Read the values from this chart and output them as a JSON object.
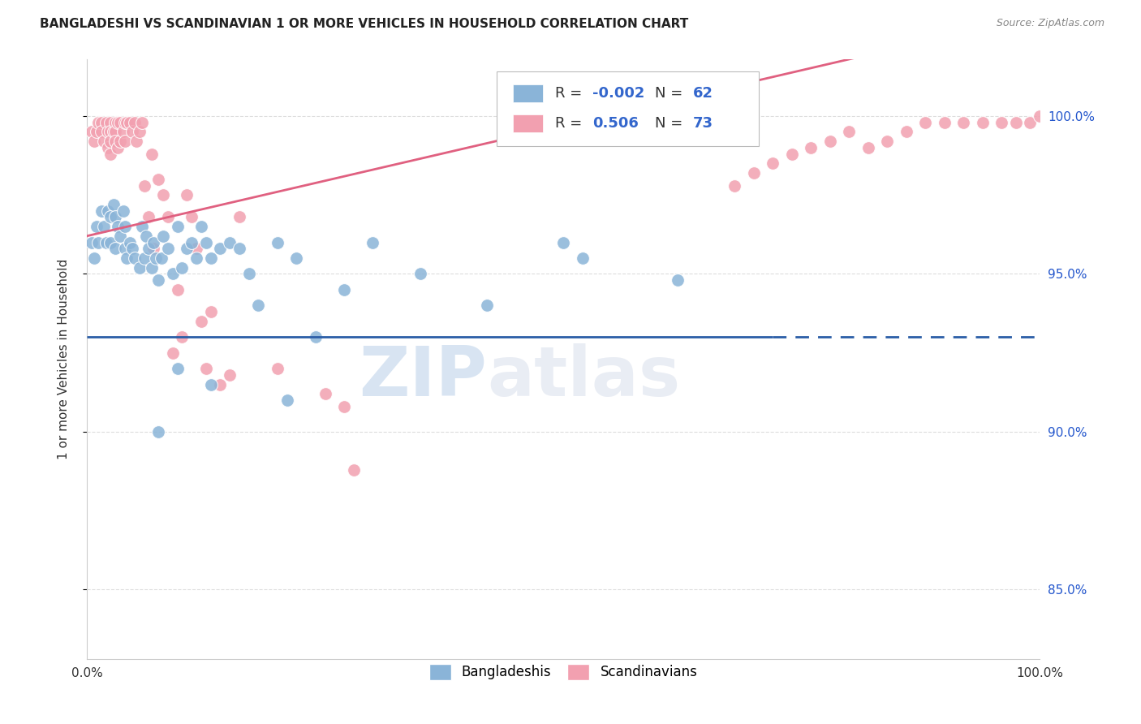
{
  "title": "BANGLADESHI VS SCANDINAVIAN 1 OR MORE VEHICLES IN HOUSEHOLD CORRELATION CHART",
  "source": "Source: ZipAtlas.com",
  "ylabel": "1 or more Vehicles in Household",
  "xlim": [
    0.0,
    1.0
  ],
  "ylim": [
    0.828,
    1.018
  ],
  "yticks": [
    0.85,
    0.9,
    0.95,
    1.0
  ],
  "ytick_labels": [
    "85.0%",
    "90.0%",
    "95.0%",
    "100.0%"
  ],
  "xticks": [
    0.0,
    0.1,
    0.2,
    0.3,
    0.4,
    0.5,
    0.6,
    0.7,
    0.8,
    0.9,
    1.0
  ],
  "xtick_labels": [
    "0.0%",
    "",
    "",
    "",
    "",
    "",
    "",
    "",
    "",
    "",
    "100.0%"
  ],
  "legend_label_blue": "Bangladeshis",
  "legend_label_pink": "Scandinavians",
  "blue_color": "#8ab4d8",
  "pink_color": "#f2a0b0",
  "blue_line_color": "#2b5ea7",
  "pink_line_color": "#e06080",
  "watermark_zip": "ZIP",
  "watermark_atlas": "atlas",
  "blue_line_solid_end": 0.72,
  "blue_line_y": 0.93,
  "blue_scatter_x": [
    0.005,
    0.008,
    0.01,
    0.012,
    0.015,
    0.018,
    0.02,
    0.022,
    0.025,
    0.025,
    0.028,
    0.03,
    0.03,
    0.032,
    0.035,
    0.038,
    0.04,
    0.04,
    0.042,
    0.045,
    0.048,
    0.05,
    0.055,
    0.058,
    0.06,
    0.062,
    0.065,
    0.068,
    0.07,
    0.072,
    0.075,
    0.078,
    0.08,
    0.085,
    0.09,
    0.095,
    0.1,
    0.105,
    0.11,
    0.115,
    0.12,
    0.125,
    0.13,
    0.14,
    0.15,
    0.16,
    0.17,
    0.18,
    0.2,
    0.22,
    0.24,
    0.27,
    0.3,
    0.35,
    0.42,
    0.5,
    0.52,
    0.62,
    0.095,
    0.13,
    0.075,
    0.21
  ],
  "blue_scatter_y": [
    0.96,
    0.955,
    0.965,
    0.96,
    0.97,
    0.965,
    0.96,
    0.97,
    0.968,
    0.96,
    0.972,
    0.968,
    0.958,
    0.965,
    0.962,
    0.97,
    0.965,
    0.958,
    0.955,
    0.96,
    0.958,
    0.955,
    0.952,
    0.965,
    0.955,
    0.962,
    0.958,
    0.952,
    0.96,
    0.955,
    0.948,
    0.955,
    0.962,
    0.958,
    0.95,
    0.965,
    0.952,
    0.958,
    0.96,
    0.955,
    0.965,
    0.96,
    0.955,
    0.958,
    0.96,
    0.958,
    0.95,
    0.94,
    0.96,
    0.955,
    0.93,
    0.945,
    0.96,
    0.95,
    0.94,
    0.96,
    0.955,
    0.948,
    0.92,
    0.915,
    0.9,
    0.91
  ],
  "pink_scatter_x": [
    0.005,
    0.008,
    0.01,
    0.012,
    0.015,
    0.015,
    0.018,
    0.02,
    0.022,
    0.022,
    0.025,
    0.025,
    0.025,
    0.025,
    0.028,
    0.03,
    0.03,
    0.03,
    0.032,
    0.032,
    0.035,
    0.035,
    0.038,
    0.04,
    0.04,
    0.042,
    0.045,
    0.048,
    0.05,
    0.052,
    0.055,
    0.058,
    0.06,
    0.065,
    0.068,
    0.07,
    0.075,
    0.08,
    0.085,
    0.09,
    0.095,
    0.1,
    0.105,
    0.11,
    0.115,
    0.12,
    0.125,
    0.13,
    0.14,
    0.15,
    0.16,
    0.2,
    0.25,
    0.27,
    0.28,
    0.68,
    0.7,
    0.72,
    0.74,
    0.76,
    0.78,
    0.8,
    0.82,
    0.84,
    0.86,
    0.88,
    0.9,
    0.92,
    0.94,
    0.96,
    0.975,
    0.99,
    1.0
  ],
  "pink_scatter_y": [
    0.995,
    0.992,
    0.995,
    0.998,
    0.998,
    0.995,
    0.992,
    0.998,
    0.995,
    0.99,
    0.998,
    0.995,
    0.992,
    0.988,
    0.995,
    0.998,
    0.995,
    0.992,
    0.998,
    0.99,
    0.998,
    0.992,
    0.995,
    0.998,
    0.992,
    0.998,
    0.998,
    0.995,
    0.998,
    0.992,
    0.995,
    0.998,
    0.978,
    0.968,
    0.988,
    0.958,
    0.98,
    0.975,
    0.968,
    0.925,
    0.945,
    0.93,
    0.975,
    0.968,
    0.958,
    0.935,
    0.92,
    0.938,
    0.915,
    0.918,
    0.968,
    0.92,
    0.912,
    0.908,
    0.888,
    0.978,
    0.982,
    0.985,
    0.988,
    0.99,
    0.992,
    0.995,
    0.99,
    0.992,
    0.995,
    0.998,
    0.998,
    0.998,
    0.998,
    0.998,
    0.998,
    0.998,
    1.0
  ]
}
